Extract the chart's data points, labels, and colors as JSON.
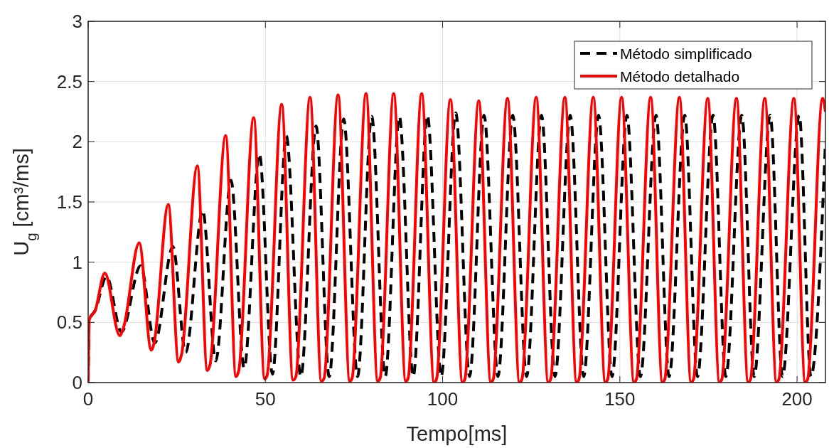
{
  "chart_data": {
    "type": "line",
    "xlabel": "Tempo[ms]",
    "ylabel": "U$_{g}$ [cm³/ms]",
    "xlim": [
      0,
      208
    ],
    "xticks": [
      0,
      50,
      100,
      150,
      200
    ],
    "ylim": [
      0,
      3
    ],
    "yticks": [
      0,
      0.5,
      1,
      1.5,
      2,
      2.5,
      3
    ],
    "grid": true,
    "legend": "top right",
    "series": [
      {
        "name": "Método simplificado",
        "color": "#000000",
        "line_style": "dashed",
        "x": [
          0,
          0.3,
          2,
          5.2,
          9.4,
          14.8,
          18.8,
          23.9,
          27.5,
          32.3,
          36,
          40.3,
          44,
          48.3,
          52,
          55.9,
          60,
          64.3,
          68,
          72.1,
          76,
          80,
          83.8,
          87.8,
          91.7,
          95.7,
          99.6,
          103.7,
          107.6,
          111.7,
          115.6,
          119.8,
          123.7,
          127.9,
          131.7,
          136,
          139.8,
          144,
          147.8,
          152,
          155.8,
          160.2,
          163.9,
          168.3,
          171.9,
          176.3,
          179.9,
          184.4,
          187.9,
          192.4,
          195.9,
          200.6,
          203.9,
          208
        ],
        "values": [
          0,
          0.52,
          0.6,
          0.88,
          0.42,
          0.97,
          0.33,
          1.13,
          0.25,
          1.43,
          0.18,
          1.68,
          0.12,
          1.9,
          0.07,
          2.05,
          0.05,
          2.13,
          0.05,
          2.19,
          0.05,
          2.21,
          0.05,
          2.21,
          0.05,
          2.22,
          0.05,
          2.24,
          0.05,
          2.22,
          0.05,
          2.22,
          0.05,
          2.22,
          0.05,
          2.22,
          0.05,
          2.22,
          0.05,
          2.22,
          0.05,
          2.22,
          0.05,
          2.22,
          0.05,
          2.22,
          0.05,
          2.22,
          0.05,
          2.22,
          0.05,
          2.22,
          0.05,
          2.0
        ]
      },
      {
        "name": "Método detalhado",
        "color": "#ff0000",
        "line_style": "solid",
        "x": [
          0,
          0.3,
          2,
          4.7,
          8.9,
          10,
          14.4,
          17.8,
          18.6,
          22.6,
          25.5,
          26.4,
          30.8,
          33.6,
          34.4,
          38.8,
          41.7,
          42.5,
          46.7,
          49.8,
          50.5,
          54.6,
          57.8,
          58.6,
          62.6,
          65.8,
          66.6,
          70.5,
          73.8,
          74.5,
          78.4,
          81.7,
          82.4,
          86.2,
          89.6,
          90.3,
          94.1,
          97.6,
          98.3,
          102.2,
          105.6,
          106.3,
          110.2,
          113.6,
          114.3,
          118.3,
          121.7,
          122.4,
          126.4,
          129.8,
          130.5,
          134.5,
          137.8,
          138.5,
          142.5,
          145.9,
          146.6,
          150.5,
          154,
          154.7,
          158.7,
          162,
          162.7,
          166.8,
          170.1,
          170.8,
          174.8,
          178.1,
          178.8,
          182.9,
          186.2,
          186.9,
          190.9,
          194.2,
          194.9,
          199.1,
          202.3,
          203,
          207.2,
          208
        ],
        "values": [
          0,
          0.52,
          0.6,
          0.91,
          0.39,
          0.46,
          1.16,
          0.27,
          0.33,
          1.48,
          0.17,
          0.24,
          1.8,
          0.1,
          0.15,
          2.05,
          0.05,
          0.1,
          2.2,
          0.03,
          0.06,
          2.31,
          0.02,
          0.05,
          2.37,
          0.01,
          0.04,
          2.39,
          0.01,
          0.04,
          2.4,
          0.01,
          0.04,
          2.4,
          0.01,
          0.04,
          2.4,
          0,
          0.03,
          2.35,
          0,
          0.03,
          2.34,
          0,
          0.03,
          2.36,
          0,
          0.03,
          2.37,
          0,
          0.03,
          2.37,
          0,
          0.03,
          2.37,
          0,
          0.03,
          2.37,
          0,
          0.03,
          2.37,
          0,
          0.03,
          2.37,
          0,
          0.03,
          2.36,
          0,
          0.03,
          2.36,
          0,
          0.03,
          2.36,
          0,
          0.03,
          2.36,
          0,
          0.03,
          2.36,
          2.25
        ]
      }
    ]
  }
}
